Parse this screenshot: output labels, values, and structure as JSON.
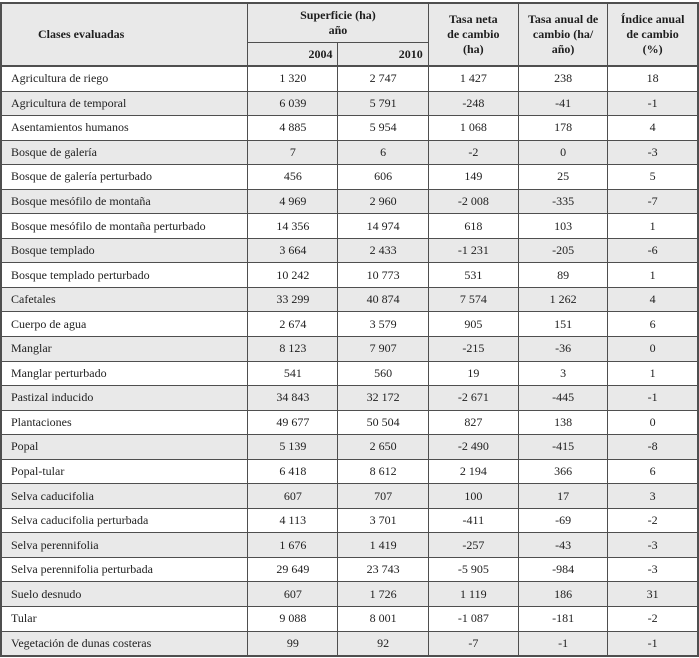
{
  "colors": {
    "border": "#4f4f4f",
    "header_bg": "#e9e9e9",
    "alt_row_bg": "#e9e9e9",
    "text": "#1e1e1e",
    "page_bg": "#ffffff"
  },
  "table": {
    "header": {
      "classes": "Clases evaluadas",
      "superficie": "Superficie (ha)\naño",
      "year_2004": "2004",
      "year_2010": "2010",
      "tasa_neta": "Tasa neta\nde cambio\n(ha)",
      "tasa_anual": "Tasa anual de\ncambio (ha/\naño)",
      "indice_anual": "Índice anual\nde cambio\n(%)"
    },
    "rows": [
      {
        "clase": "Agricultura de riego",
        "superficie_2004": "1 320",
        "superficie_2010": "2 747",
        "tasa_neta": "1 427",
        "tasa_anual": "238",
        "indice_anual": "18"
      },
      {
        "clase": "Agricultura de temporal",
        "superficie_2004": "6 039",
        "superficie_2010": "5 791",
        "tasa_neta": "-248",
        "tasa_anual": "-41",
        "indice_anual": "-1"
      },
      {
        "clase": "Asentamientos humanos",
        "superficie_2004": "4 885",
        "superficie_2010": "5 954",
        "tasa_neta": "1 068",
        "tasa_anual": "178",
        "indice_anual": "4"
      },
      {
        "clase": "Bosque de galería",
        "superficie_2004": "7",
        "superficie_2010": "6",
        "tasa_neta": "-2",
        "tasa_anual": "0",
        "indice_anual": "-3"
      },
      {
        "clase": "Bosque de galería perturbado",
        "superficie_2004": "456",
        "superficie_2010": "606",
        "tasa_neta": "149",
        "tasa_anual": "25",
        "indice_anual": "5"
      },
      {
        "clase": "Bosque mesófilo de montaña",
        "superficie_2004": "4 969",
        "superficie_2010": "2 960",
        "tasa_neta": "-2 008",
        "tasa_anual": "-335",
        "indice_anual": "-7"
      },
      {
        "clase": "Bosque mesófilo de montaña perturbado",
        "superficie_2004": "14 356",
        "superficie_2010": "14 974",
        "tasa_neta": "618",
        "tasa_anual": "103",
        "indice_anual": "1"
      },
      {
        "clase": "Bosque templado",
        "superficie_2004": "3 664",
        "superficie_2010": "2 433",
        "tasa_neta": "-1 231",
        "tasa_anual": "-205",
        "indice_anual": "-6"
      },
      {
        "clase": "Bosque templado perturbado",
        "superficie_2004": "10 242",
        "superficie_2010": "10 773",
        "tasa_neta": "531",
        "tasa_anual": "89",
        "indice_anual": "1"
      },
      {
        "clase": "Cafetales",
        "superficie_2004": "33 299",
        "superficie_2010": "40 874",
        "tasa_neta": "7 574",
        "tasa_anual": "1 262",
        "indice_anual": "4"
      },
      {
        "clase": "Cuerpo de agua",
        "superficie_2004": "2 674",
        "superficie_2010": "3 579",
        "tasa_neta": "905",
        "tasa_anual": "151",
        "indice_anual": "6"
      },
      {
        "clase": "Manglar",
        "superficie_2004": "8 123",
        "superficie_2010": "7 907",
        "tasa_neta": "-215",
        "tasa_anual": "-36",
        "indice_anual": "0"
      },
      {
        "clase": "Manglar perturbado",
        "superficie_2004": "541",
        "superficie_2010": "560",
        "tasa_neta": "19",
        "tasa_anual": "3",
        "indice_anual": "1"
      },
      {
        "clase": "Pastizal inducido",
        "superficie_2004": "34 843",
        "superficie_2010": "32 172",
        "tasa_neta": "-2 671",
        "tasa_anual": "-445",
        "indice_anual": "-1"
      },
      {
        "clase": "Plantaciones",
        "superficie_2004": "49 677",
        "superficie_2010": "50 504",
        "tasa_neta": "827",
        "tasa_anual": "138",
        "indice_anual": "0"
      },
      {
        "clase": "Popal",
        "superficie_2004": "5 139",
        "superficie_2010": "2 650",
        "tasa_neta": "-2 490",
        "tasa_anual": "-415",
        "indice_anual": "-8"
      },
      {
        "clase": "Popal-tular",
        "superficie_2004": "6 418",
        "superficie_2010": "8 612",
        "tasa_neta": "2 194",
        "tasa_anual": "366",
        "indice_anual": "6"
      },
      {
        "clase": "Selva caducifolia",
        "superficie_2004": "607",
        "superficie_2010": "707",
        "tasa_neta": "100",
        "tasa_anual": "17",
        "indice_anual": "3"
      },
      {
        "clase": "Selva caducifolia perturbada",
        "superficie_2004": "4 113",
        "superficie_2010": "3 701",
        "tasa_neta": "-411",
        "tasa_anual": "-69",
        "indice_anual": "-2"
      },
      {
        "clase": "Selva perennifolia",
        "superficie_2004": "1 676",
        "superficie_2010": "1 419",
        "tasa_neta": "-257",
        "tasa_anual": "-43",
        "indice_anual": "-3"
      },
      {
        "clase": "Selva perennifolia perturbada",
        "superficie_2004": "29 649",
        "superficie_2010": "23 743",
        "tasa_neta": "-5 905",
        "tasa_anual": "-984",
        "indice_anual": "-3"
      },
      {
        "clase": "Suelo desnudo",
        "superficie_2004": "607",
        "superficie_2010": "1 726",
        "tasa_neta": "1 119",
        "tasa_anual": "186",
        "indice_anual": "31"
      },
      {
        "clase": "Tular",
        "superficie_2004": "9 088",
        "superficie_2010": "8 001",
        "tasa_neta": "-1 087",
        "tasa_anual": "-181",
        "indice_anual": "-2"
      },
      {
        "clase": "Vegetación de dunas costeras",
        "superficie_2004": "99",
        "superficie_2010": "92",
        "tasa_neta": "-7",
        "tasa_anual": "-1",
        "indice_anual": "-1"
      }
    ]
  }
}
